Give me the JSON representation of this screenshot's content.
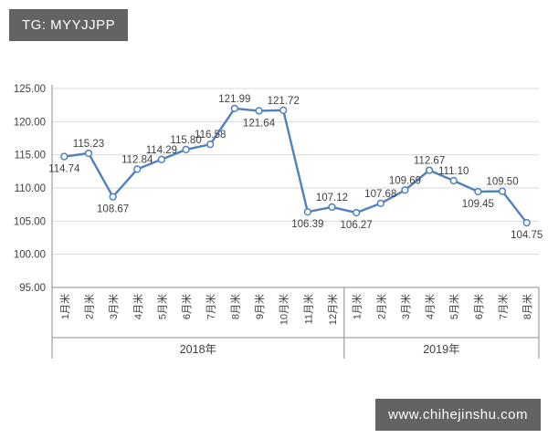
{
  "top_badge": {
    "text": "TG: MYYJJPP",
    "bg": "#636363",
    "fg": "#ffffff"
  },
  "bottom_badge": {
    "text": "www.chihejinshu.com",
    "bg": "#636363",
    "fg": "#ffffff"
  },
  "chart_data": {
    "type": "line",
    "title": "",
    "categories": [
      "1月米",
      "2月米",
      "3月米",
      "4月米",
      "5月米",
      "6月米",
      "7月米",
      "8月米",
      "9月米",
      "10月米",
      "11月米",
      "12月米",
      "1月米",
      "2月米",
      "3月米",
      "4月米",
      "5月米",
      "6月米",
      "7月米",
      "8月米"
    ],
    "groups": [
      {
        "label": "2018年",
        "span": 12
      },
      {
        "label": "2019年",
        "span": 8
      }
    ],
    "series": [
      {
        "name": "",
        "values": [
          114.74,
          115.23,
          108.67,
          112.84,
          114.29,
          115.8,
          116.58,
          121.99,
          121.64,
          121.72,
          106.39,
          107.12,
          106.27,
          107.68,
          109.69,
          112.67,
          111.1,
          109.45,
          109.5,
          104.75
        ],
        "labels": [
          "114.74",
          "115.23",
          "108.67",
          "112.84",
          "114.29",
          "115.80",
          "116.58",
          "121.99",
          "121.64",
          "121.72",
          "106.39",
          "107.12",
          "106.27",
          "107.68",
          "109.69",
          "112.67",
          "111.10",
          "109.45",
          "109.50",
          "104.75"
        ],
        "label_positions": [
          "below",
          "above",
          "below",
          "above",
          "above",
          "above",
          "above",
          "above",
          "below",
          "above",
          "below",
          "above",
          "below",
          "above",
          "above",
          "above",
          "above",
          "below",
          "above",
          "below"
        ]
      }
    ],
    "y_axis": {
      "min": 95,
      "max": 125,
      "step": 5,
      "tick_labels": [
        "95.00",
        "100.00",
        "105.00",
        "110.00",
        "115.00",
        "120.00",
        "125.00"
      ]
    },
    "grid": true,
    "legend": "none",
    "line_color": "#4f81bd",
    "marker": "open-circle",
    "marker_fill": "#ffffff",
    "gridline_color": "#d9d9d9",
    "axis_color": "#8c8c8c",
    "label_color": "#3f3f3f"
  }
}
